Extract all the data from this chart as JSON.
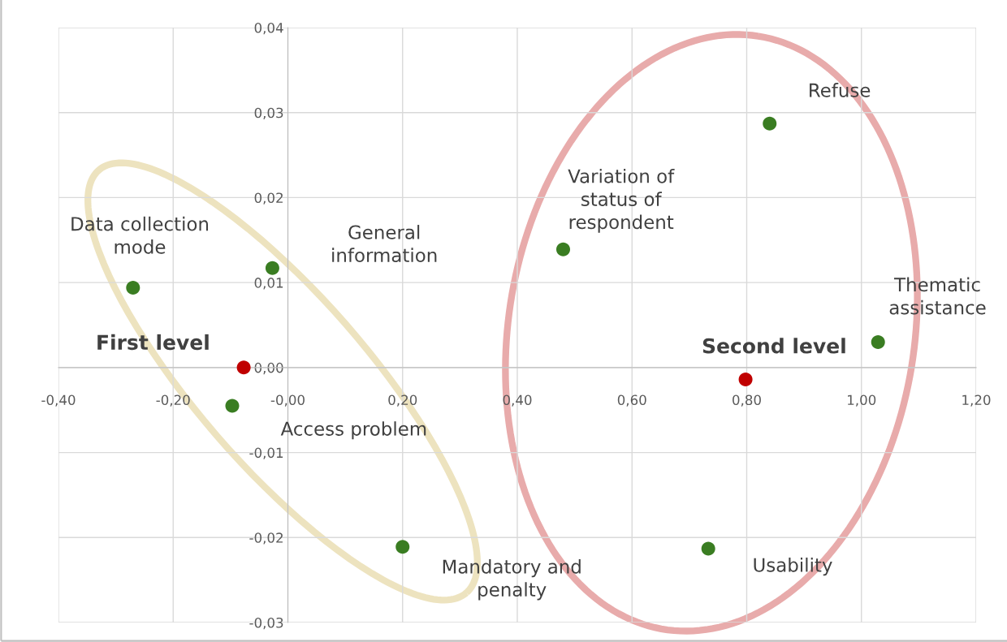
{
  "chart_data": {
    "type": "scatter",
    "series": [
      {
        "color": "#3a7d22",
        "x": [
          -0.27,
          -0.027,
          -0.097,
          0.2,
          0.48,
          0.84,
          1.029,
          0.733
        ],
        "values": [
          0.0094,
          0.0117,
          -0.0045,
          -0.0211,
          0.0139,
          0.0287,
          0.003,
          -0.0213
        ]
      },
      {
        "color": "#c00000",
        "x": [
          -0.077,
          0.798
        ],
        "values": [
          0.0,
          -0.0014
        ]
      }
    ],
    "annotations": [
      "Data collection\nmode",
      "General\ninformation",
      "Access problem",
      "Mandatory and\npenalty",
      "Variation of\nstatus of\nrespondent",
      "Refuse",
      "Thematic\nassistance",
      "Usability",
      "First level",
      "Second level"
    ],
    "xlim": [
      -0.4,
      1.2
    ],
    "xticks": [
      {
        "value": -0.4,
        "label": "-0,40"
      },
      {
        "value": -0.2,
        "label": "-0,20"
      },
      {
        "value": 0.0,
        "label": "-0,00"
      },
      {
        "value": 0.2,
        "label": "0,20"
      },
      {
        "value": 0.4,
        "label": "0,40"
      },
      {
        "value": 0.6,
        "label": "0,60"
      },
      {
        "value": 0.8,
        "label": "0,80"
      },
      {
        "value": 1.0,
        "label": "1,00"
      },
      {
        "value": 1.2,
        "label": "1,20"
      }
    ],
    "ylim": [
      -0.03,
      0.04
    ],
    "yticks": [
      {
        "value": -0.03,
        "label": "-0,03"
      },
      {
        "value": -0.02,
        "label": "-0,02"
      },
      {
        "value": -0.01,
        "label": "-0,01"
      },
      {
        "value": 0.0,
        "label": "0,00"
      },
      {
        "value": 0.01,
        "label": "0,01"
      },
      {
        "value": 0.02,
        "label": "0,02"
      },
      {
        "value": 0.03,
        "label": "0,03"
      },
      {
        "value": 0.04,
        "label": "0,04"
      }
    ],
    "grid": true,
    "marker": "circle"
  }
}
